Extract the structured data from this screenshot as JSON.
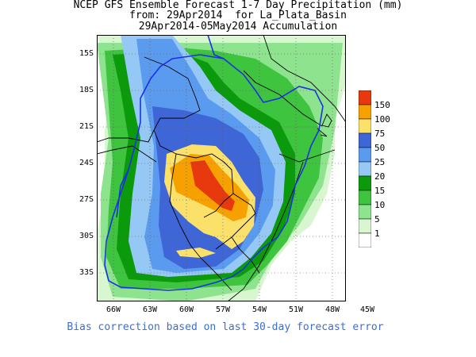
{
  "title": {
    "line1": "NCEP GFS Ensemble Forecast 1-7 Day Precipitation (mm)",
    "line2": "from: 29Apr2014  for La_Plata_Basin",
    "line3": "29Apr2014-05May2014 Accumulation"
  },
  "axes": {
    "lat_labels": [
      "15S",
      "18S",
      "21S",
      "24S",
      "27S",
      "30S",
      "33S"
    ],
    "lon_labels": [
      "66W",
      "63W",
      "60W",
      "57W",
      "54W",
      "51W",
      "48W",
      "45W"
    ]
  },
  "legend": {
    "bins": [
      {
        "label": "150",
        "color": "#e8380e"
      },
      {
        "label": "100",
        "color": "#f7a100"
      },
      {
        "label": "75",
        "color": "#fbe06a"
      },
      {
        "label": "50",
        "color": "#3f66d6"
      },
      {
        "label": "25",
        "color": "#5a9bf0"
      },
      {
        "label": "20",
        "color": "#95c8f5"
      },
      {
        "label": "15",
        "color": "#0b9a0b"
      },
      {
        "label": "10",
        "color": "#3ec43e"
      },
      {
        "label": "5",
        "color": "#8ee38e"
      },
      {
        "label": "1",
        "color": "#d8f7d0"
      }
    ],
    "bottom_color": "#ffffff"
  },
  "footer": "Bias correction based on last 30-day forecast error",
  "colors": {
    "basin_outline": "#1a32e6",
    "borders": "#000000"
  }
}
